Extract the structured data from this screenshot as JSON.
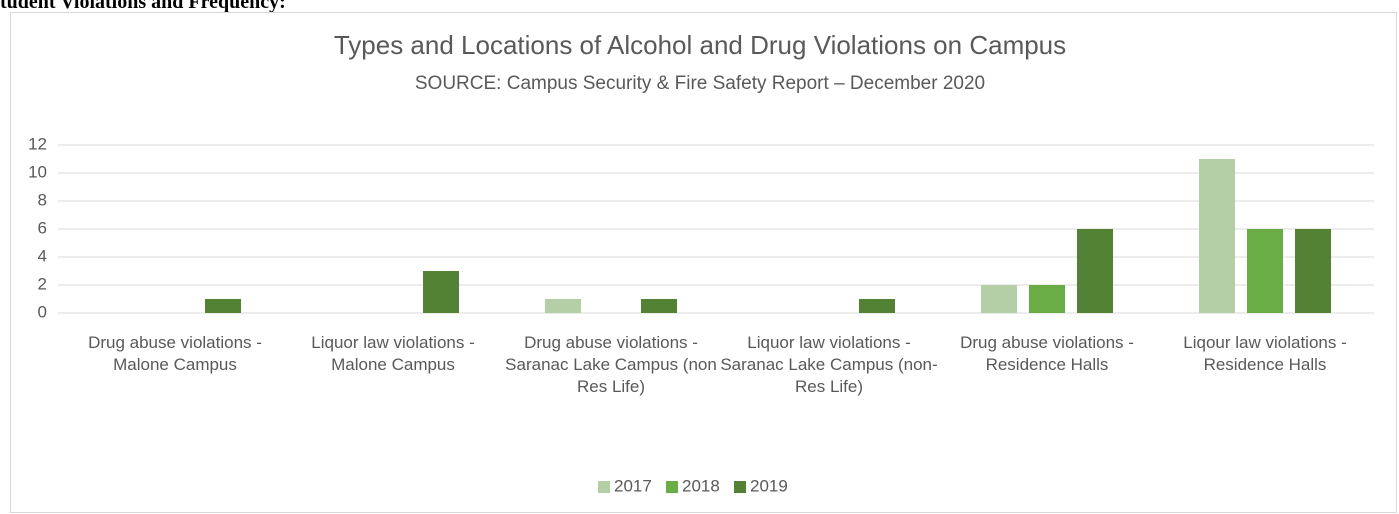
{
  "heading": "tudent Violations and Frequency:",
  "chart_data": {
    "type": "bar",
    "title": "Types and Locations of Alcohol and Drug Violations on Campus",
    "subtitle": "SOURCE: Campus Security & Fire Safety Report – December 2020",
    "categories": [
      "Drug abuse violations - Malone Campus",
      "Liquor law violations - Malone Campus",
      "Drug abuse violations - Saranac Lake Campus (non Res Life)",
      "Liquor law violations - Saranac Lake Campus (non-Res Life)",
      "Drug abuse violations - Residence Halls",
      "Liqour law violations - Residence Halls"
    ],
    "series": [
      {
        "name": "2017",
        "color": "#b4cfa5",
        "values": [
          0,
          0,
          1,
          0,
          2,
          11
        ]
      },
      {
        "name": "2018",
        "color": "#6aac46",
        "values": [
          0,
          0,
          0,
          0,
          2,
          6
        ]
      },
      {
        "name": "2019",
        "color": "#548235",
        "values": [
          1,
          3,
          1,
          1,
          6,
          6
        ]
      }
    ],
    "ylim": [
      0,
      12
    ],
    "yticks": [
      0,
      2,
      4,
      6,
      8,
      10,
      12
    ],
    "grid": true,
    "legend": "bottom"
  }
}
